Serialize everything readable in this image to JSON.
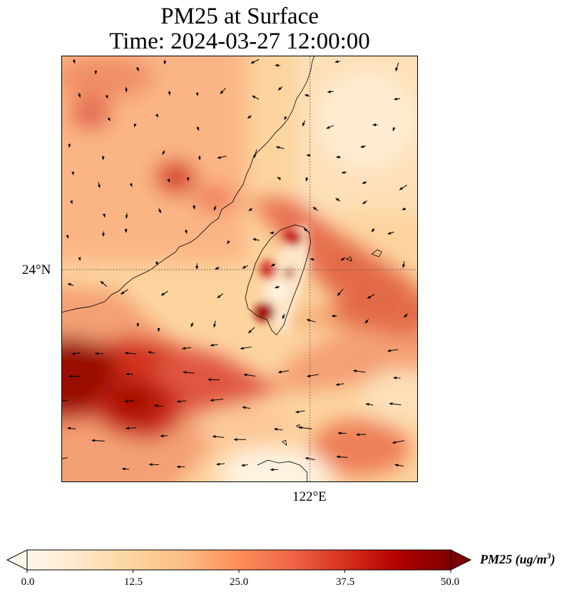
{
  "title": {
    "line1": "PM25 at Surface",
    "line2": "Time: 2024-03-27 12:00:00"
  },
  "map": {
    "variable": "PM25",
    "lat_label": "24°N",
    "lon_label": "122°E",
    "gridlines": "dotted",
    "colormap": "OrRd",
    "wind_vectors": true
  },
  "colorbar": {
    "label": "PM25 (ug/m",
    "label_sup": "3",
    "label_close": ")",
    "min": 0.0,
    "max": 50.0,
    "ticks": [
      "0.0",
      "12.5",
      "25.0",
      "37.5",
      "50.0"
    ],
    "extend": "both",
    "colors": [
      "#fff7ec",
      "#fee8c8",
      "#fdd49e",
      "#fdbb84",
      "#fc8d59",
      "#ef6548",
      "#d7301f",
      "#b30000",
      "#7f0000"
    ]
  }
}
